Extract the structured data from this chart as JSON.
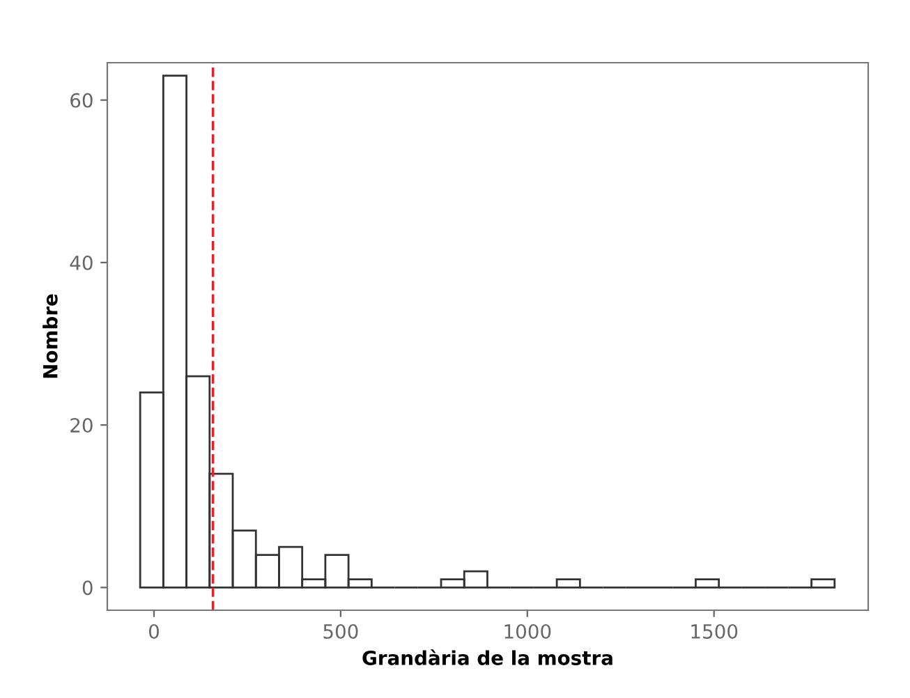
{
  "chart_data": {
    "type": "histogram",
    "xlabel": "Grandària de la mostra",
    "ylabel": "Nombre",
    "bins": [
      -37,
      25,
      87,
      149,
      211,
      273,
      335,
      397,
      459,
      521,
      583,
      645,
      707,
      769,
      831,
      893,
      955,
      1017,
      1079,
      1141,
      1203,
      1265,
      1327,
      1389,
      1451,
      1513,
      1575,
      1637,
      1699,
      1761,
      1823
    ],
    "values": [
      24,
      63,
      26,
      14,
      7,
      4,
      5,
      1,
      4,
      1,
      0,
      0,
      0,
      1,
      2,
      0,
      0,
      0,
      1,
      0,
      0,
      0,
      0,
      0,
      1,
      0,
      0,
      0,
      0,
      1
    ],
    "color": "#333333",
    "xlim": [
      -125,
      1913
    ],
    "ylim": [
      -2.8,
      64.6
    ],
    "xticks": [
      0,
      500,
      1000,
      1500
    ],
    "yticks": [
      0,
      20,
      40,
      60
    ],
    "ref_lines": [
      {
        "axis": "x",
        "value": 158,
        "color": "#e8202a",
        "line_style": "dashed"
      }
    ],
    "grid": false
  }
}
